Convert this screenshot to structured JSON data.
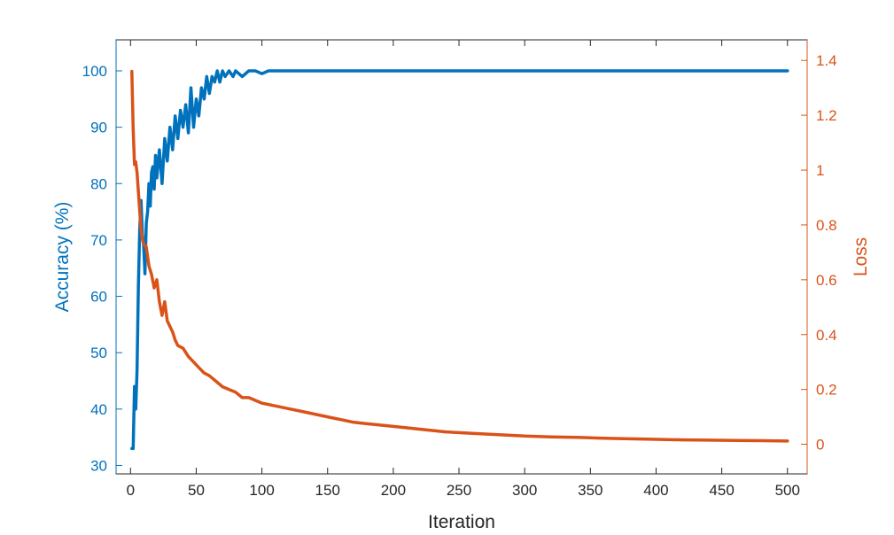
{
  "chart_data": {
    "type": "line",
    "title": "",
    "xlabel": "Iteration",
    "ylabel_left": "Accuracy (%)",
    "ylabel_right": "Loss",
    "xlim": [
      -11,
      515
    ],
    "ylim_left": [
      28.5,
      105.5
    ],
    "ylim_right": [
      -0.108,
      1.475
    ],
    "x_ticks": [
      0,
      50,
      100,
      150,
      200,
      250,
      300,
      350,
      400,
      450,
      500
    ],
    "y_ticks_left": [
      30,
      40,
      50,
      60,
      70,
      80,
      90,
      100
    ],
    "y_ticks_right": [
      "0",
      "0.2",
      "0.4",
      "0.6",
      "0.8",
      "1",
      "1.2",
      "1.4"
    ],
    "grid": false,
    "legend": "none",
    "colors": {
      "accuracy": "#0072BD",
      "loss": "#D95319",
      "axis": "#262626"
    },
    "series": [
      {
        "axis": "left",
        "x": [
          1,
          2,
          3,
          4,
          5,
          6,
          7,
          8,
          9,
          10,
          11,
          12,
          13,
          14,
          15,
          16,
          17,
          18,
          19,
          20,
          22,
          24,
          26,
          28,
          30,
          32,
          34,
          36,
          38,
          40,
          42,
          44,
          46,
          48,
          50,
          52,
          54,
          56,
          58,
          60,
          62,
          64,
          66,
          68,
          70,
          72,
          75,
          78,
          80,
          85,
          90,
          95,
          100,
          105,
          150,
          200,
          300,
          400,
          500
        ],
        "values": [
          33,
          33,
          44,
          40,
          47,
          62,
          72,
          77,
          71,
          69,
          64,
          73,
          75,
          80,
          76,
          82,
          83,
          79,
          85,
          81,
          86,
          80,
          88,
          84,
          90,
          86,
          92,
          88,
          93,
          90,
          94,
          89,
          97,
          90,
          95,
          92,
          97,
          95,
          99,
          96,
          99,
          98,
          100,
          98,
          100,
          99,
          100,
          99,
          100,
          99,
          100,
          100,
          99.5,
          100,
          100,
          100,
          100,
          100,
          100
        ]
      },
      {
        "axis": "right",
        "x": [
          1,
          2,
          3,
          4,
          5,
          6,
          7,
          8,
          9,
          10,
          12,
          14,
          16,
          18,
          20,
          22,
          24,
          26,
          28,
          30,
          32,
          34,
          36,
          40,
          44,
          48,
          52,
          56,
          60,
          65,
          70,
          75,
          80,
          85,
          90,
          95,
          100,
          110,
          120,
          130,
          140,
          150,
          160,
          170,
          180,
          190,
          200,
          220,
          240,
          260,
          280,
          300,
          320,
          340,
          360,
          380,
          400,
          420,
          440,
          460,
          480,
          500
        ],
        "values": [
          1.36,
          1.15,
          1.02,
          1.03,
          0.99,
          0.92,
          0.85,
          0.78,
          0.75,
          0.73,
          0.72,
          0.65,
          0.62,
          0.57,
          0.6,
          0.52,
          0.47,
          0.52,
          0.45,
          0.43,
          0.41,
          0.38,
          0.36,
          0.35,
          0.32,
          0.3,
          0.28,
          0.26,
          0.25,
          0.23,
          0.21,
          0.2,
          0.19,
          0.17,
          0.17,
          0.16,
          0.15,
          0.14,
          0.13,
          0.12,
          0.11,
          0.1,
          0.09,
          0.08,
          0.075,
          0.07,
          0.065,
          0.055,
          0.045,
          0.04,
          0.035,
          0.03,
          0.027,
          0.025,
          0.022,
          0.02,
          0.018,
          0.016,
          0.015,
          0.014,
          0.013,
          0.012
        ]
      }
    ]
  }
}
